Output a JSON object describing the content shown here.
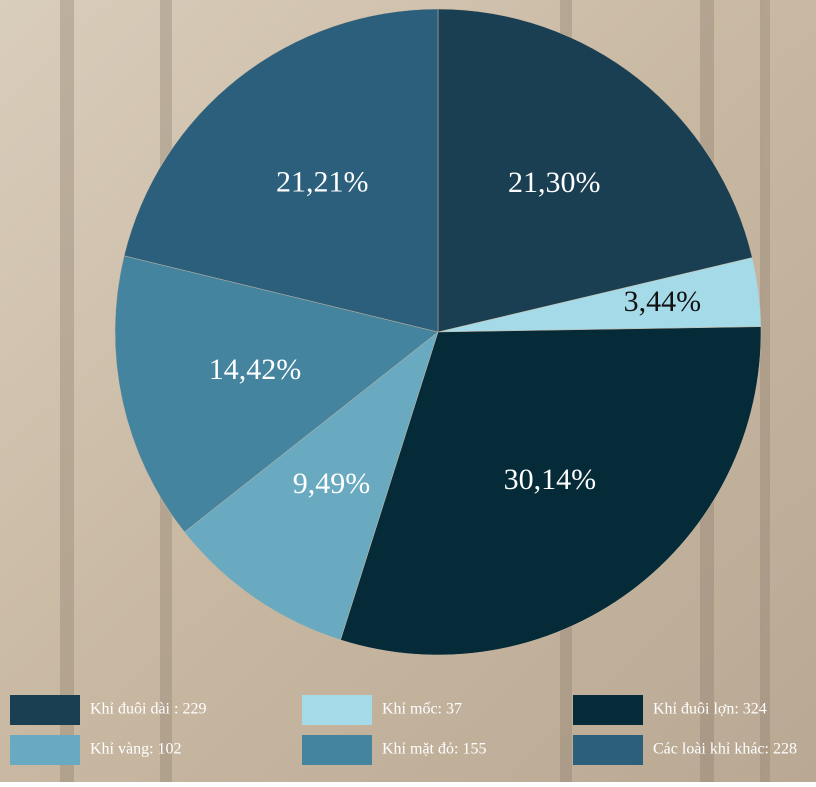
{
  "chart_data": {
    "type": "pie",
    "categories": [
      "Khỉ đuôi dài : 229",
      "Khỉ mốc: 37",
      "Khỉ đuôi lợn: 324",
      "Khỉ vàng: 102",
      "Khỉ mặt đỏ: 155",
      "Các loài khỉ khác: 228"
    ],
    "values": [
      21.3,
      3.44,
      30.14,
      9.49,
      14.42,
      21.21
    ],
    "value_labels": [
      "21,30%",
      "3,44%",
      "30,14%",
      "9,49%",
      "14,42%",
      "21,21%"
    ],
    "colors": [
      "#1a3f53",
      "#a5dbe9",
      "#052a38",
      "#6aaac0",
      "#44849f",
      "#2c5f7c"
    ]
  }
}
